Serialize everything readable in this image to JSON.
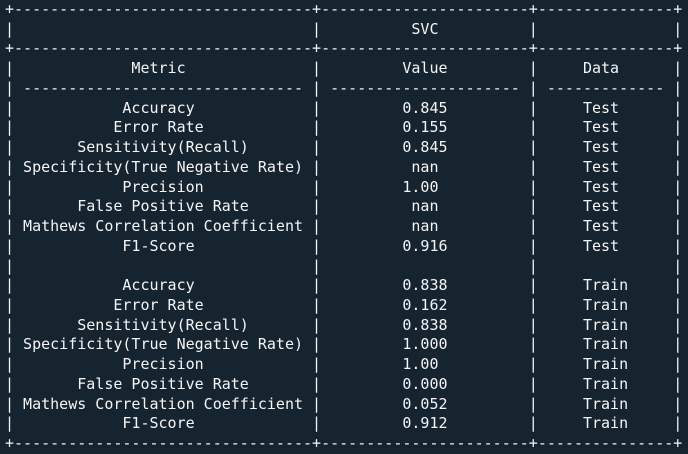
{
  "app": {
    "background_color": "#162430",
    "text_color": "#f5f5f5"
  },
  "table": {
    "title": "SVC",
    "headers": [
      "Metric",
      "Value",
      "Data"
    ],
    "groups": [
      {
        "label": "Test",
        "rows": [
          [
            "Accuracy",
            "0.845",
            "Test"
          ],
          [
            "Error Rate",
            "0.155",
            "Test"
          ],
          [
            "Sensitivity(Recall)",
            "0.845",
            "Test"
          ],
          [
            "Specificity(True Negative Rate)",
            "nan",
            "Test"
          ],
          [
            "Precision",
            "1.00",
            "Test"
          ],
          [
            "False Positive Rate",
            "nan",
            "Test"
          ],
          [
            "Mathews Correlation Coefficient",
            "nan",
            "Test"
          ],
          [
            "F1-Score",
            "0.916",
            "Test"
          ]
        ]
      },
      {
        "label": "Train",
        "rows": [
          [
            "Accuracy",
            "0.838",
            "Train"
          ],
          [
            "Error Rate",
            "0.162",
            "Train"
          ],
          [
            "Sensitivity(Recall)",
            "0.838",
            "Train"
          ],
          [
            "Specificity(True Negative Rate)",
            "1.000",
            "Train"
          ],
          [
            "Precision",
            "1.00",
            "Train"
          ],
          [
            "False Positive Rate",
            "0.000",
            "Train"
          ],
          [
            "Mathews Correlation Coefficient",
            "0.052",
            "Train"
          ],
          [
            "F1-Score",
            "0.912",
            "Train"
          ]
        ]
      }
    ]
  }
}
